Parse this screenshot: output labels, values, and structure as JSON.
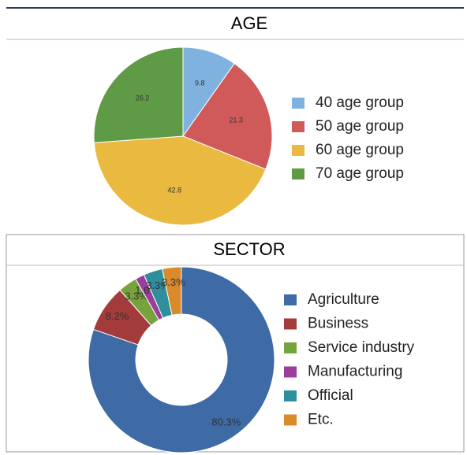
{
  "chart_data": [
    {
      "type": "pie",
      "title": "AGE",
      "categories": [
        "40 age group",
        "50 age group",
        "60 age group",
        "70 age group"
      ],
      "values": [
        9.8,
        21.3,
        42.8,
        26.2
      ],
      "colors": [
        "#7fb2df",
        "#d05a5a",
        "#e9b940",
        "#5f9b46"
      ]
    },
    {
      "type": "donut",
      "title": "SECTOR",
      "categories": [
        "Agriculture",
        "Business",
        "Service industry",
        "Manufacturing",
        "Official",
        "Etc."
      ],
      "values": [
        80.3,
        8.2,
        3.3,
        1.6,
        3.3,
        3.3
      ],
      "value_labels": [
        "80.3%",
        "8.2%",
        "3.3%",
        "1.6%",
        "3.3%",
        "3.3%"
      ],
      "colors": [
        "#3e6aa6",
        "#a33b3b",
        "#77a33c",
        "#9b3e9b",
        "#2e8e9c",
        "#d98a2a"
      ]
    }
  ]
}
